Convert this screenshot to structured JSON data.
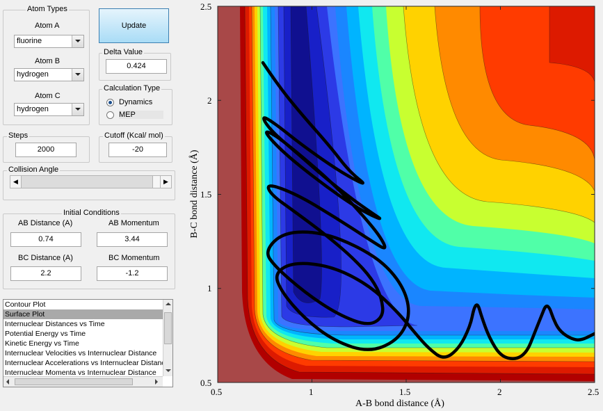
{
  "atom_types": {
    "title": "Atom Types",
    "atom_a_label": "Atom A",
    "atom_a_value": "fluorine",
    "atom_b_label": "Atom B",
    "atom_b_value": "hydrogen",
    "atom_c_label": "Atom C",
    "atom_c_value": "hydrogen"
  },
  "update_button": "Update",
  "delta": {
    "title": "Delta Value",
    "value": "0.424"
  },
  "calc_type": {
    "title": "Calculation Type",
    "options": [
      "Dynamics",
      "MEP"
    ],
    "selected": "Dynamics"
  },
  "steps": {
    "title": "Steps",
    "value": "2000"
  },
  "cutoff": {
    "title": "Cutoff (Kcal/ mol)",
    "value": "-20"
  },
  "collision": {
    "title": "Collision Angle",
    "slider_fraction": 0.9
  },
  "initial": {
    "title": "Initial Conditions",
    "ab_distance_label": "AB Distance (A)",
    "ab_distance": "0.74",
    "ab_momentum_label": "AB Momentum",
    "ab_momentum": "3.44",
    "bc_distance_label": "BC Distance (A)",
    "bc_distance": "2.2",
    "bc_momentum_label": "BC Momentum",
    "bc_momentum": "-1.2"
  },
  "plot_list": {
    "items": [
      "Contour Plot",
      "Surface Plot",
      "Internuclear Distances vs Time",
      "Potential Energy vs Time",
      "Kinetic Energy vs Time",
      "Internuclear Velocities vs Internuclear Distance",
      "Internuclear Accelerations vs Internuclear Distance",
      "Internuclear Momenta vs Internuclear Distance"
    ],
    "selected_index": 1
  },
  "chart_data": {
    "type": "contour",
    "xlabel": "A-B bond distance (Å)",
    "ylabel": "B-C bond distance (Å)",
    "xlim": [
      0.5,
      2.5
    ],
    "ylim": [
      0.5,
      2.5
    ],
    "xticks": [
      "0.5",
      "1",
      "1.5",
      "2",
      "2.5"
    ],
    "yticks": [
      "0.5",
      "1",
      "1.5",
      "2",
      "2.5"
    ],
    "colormap": "jet",
    "trajectory": {
      "color": "#000000",
      "x": [
        0.74,
        0.82,
        0.95,
        1.1,
        1.2,
        1.3,
        1.15,
        0.95,
        0.8,
        0.73,
        0.78,
        0.92,
        1.08,
        1.22,
        1.32,
        1.38,
        1.25,
        1.05,
        0.85,
        0.74,
        0.8,
        0.95,
        1.12,
        1.26,
        1.36,
        1.4,
        1.32,
        1.12,
        0.92,
        0.76,
        0.78,
        0.92,
        1.08,
        1.22,
        1.32,
        1.37,
        1.38,
        1.3,
        1.14,
        0.96,
        0.8,
        0.75,
        0.85,
        1.05,
        1.25,
        1.4,
        1.5,
        1.52,
        1.45,
        1.3,
        1.12,
        0.96,
        0.84,
        0.8,
        0.9,
        1.1,
        1.3,
        1.45,
        1.55,
        1.62,
        1.7,
        1.78,
        1.84,
        1.86,
        1.88,
        1.9,
        1.94,
        2.0,
        2.08,
        2.14,
        2.18,
        2.22,
        2.24,
        2.26,
        2.28,
        2.31,
        2.36,
        2.42,
        2.5
      ],
      "y": [
        2.2,
        2.08,
        1.92,
        1.75,
        1.62,
        1.54,
        1.62,
        1.76,
        1.88,
        1.92,
        1.84,
        1.72,
        1.58,
        1.47,
        1.4,
        1.36,
        1.42,
        1.56,
        1.72,
        1.84,
        1.82,
        1.7,
        1.55,
        1.4,
        1.28,
        1.2,
        1.25,
        1.38,
        1.5,
        1.56,
        1.5,
        1.4,
        1.28,
        1.16,
        1.05,
        0.95,
        0.85,
        0.8,
        0.86,
        0.98,
        1.12,
        1.2,
        1.3,
        1.3,
        1.22,
        1.12,
        0.98,
        0.84,
        0.72,
        0.66,
        0.72,
        0.84,
        0.98,
        1.08,
        1.14,
        1.12,
        1.02,
        0.88,
        0.76,
        0.68,
        0.62,
        0.68,
        0.8,
        0.9,
        0.92,
        0.85,
        0.74,
        0.64,
        0.62,
        0.66,
        0.76,
        0.86,
        0.91,
        0.9,
        0.84,
        0.78,
        0.74,
        0.72,
        0.76
      ]
    }
  }
}
